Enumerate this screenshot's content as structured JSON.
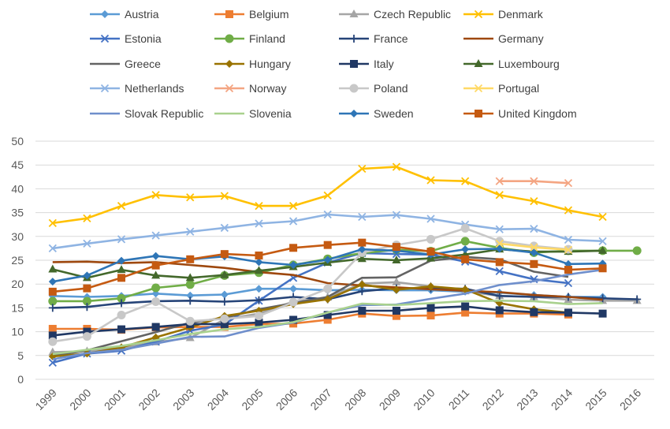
{
  "chart_data": {
    "type": "line",
    "title": "",
    "xlabel": "",
    "ylabel": "",
    "x": [
      "1999",
      "2000",
      "2001",
      "2002",
      "2003",
      "2004",
      "2005",
      "2006",
      "2007",
      "2008",
      "2009",
      "2010",
      "2011",
      "2012",
      "2013",
      "2014",
      "2015",
      "2016"
    ],
    "ylim": [
      0,
      50
    ],
    "yticks": [
      0,
      5,
      10,
      15,
      20,
      25,
      30,
      35,
      40,
      45,
      50
    ],
    "grid": true,
    "legend_position": "top",
    "series": [
      {
        "name": "Austria",
        "color": "#5B9BD5",
        "marker": "diamond",
        "values": [
          17.5,
          17.3,
          17.5,
          18.0,
          17.6,
          17.8,
          19.0,
          19.0,
          18.7,
          18.8,
          18.7,
          18.7,
          18.4,
          18.2,
          17.7,
          17.3,
          17.3,
          null
        ]
      },
      {
        "name": "Belgium",
        "color": "#ED7D31",
        "marker": "square",
        "values": [
          10.6,
          10.6,
          10.4,
          10.9,
          11.0,
          11.0,
          11.6,
          11.7,
          12.5,
          13.8,
          13.3,
          13.4,
          14.0,
          13.8,
          13.8,
          13.6,
          null,
          null
        ]
      },
      {
        "name": "Czech Republic",
        "color": "#A5A5A5",
        "marker": "triangle",
        "values": [
          5.7,
          5.9,
          6.6,
          7.8,
          8.7,
          12.6,
          13.8,
          16.3,
          17.2,
          20.1,
          20.4,
          19.5,
          18.5,
          17.5,
          17.3,
          16.7,
          16.5,
          16.5
        ]
      },
      {
        "name": "Denmark",
        "color": "#FFC000",
        "marker": "x",
        "values": [
          32.8,
          33.8,
          36.4,
          38.7,
          38.2,
          38.5,
          36.4,
          36.4,
          38.6,
          44.2,
          44.6,
          41.8,
          41.6,
          38.7,
          37.4,
          35.5,
          34.1,
          null
        ]
      },
      {
        "name": "Estonia",
        "color": "#4472C4",
        "marker": "x",
        "values": [
          3.5,
          5.4,
          6.0,
          7.9,
          10.2,
          11.5,
          16.5,
          21.3,
          24.5,
          26.5,
          26.3,
          26.2,
          24.7,
          22.7,
          21.0,
          20.2,
          null,
          null
        ]
      },
      {
        "name": "Finland",
        "color": "#70AD47",
        "marker": "circle",
        "values": [
          16.4,
          16.4,
          17.0,
          19.2,
          19.9,
          21.8,
          22.4,
          24.0,
          25.3,
          26.5,
          27.2,
          26.9,
          29.0,
          27.6,
          26.6,
          27.0,
          27.0,
          27.0
        ]
      },
      {
        "name": "France",
        "color": "#264478",
        "marker": "plus",
        "values": [
          15.0,
          15.2,
          16.0,
          16.4,
          16.5,
          16.3,
          16.6,
          17.3,
          16.8,
          18.5,
          19.1,
          19.1,
          19.0,
          17.5,
          17.3,
          17.3,
          17.0,
          16.8
        ]
      },
      {
        "name": "Germany",
        "color": "#9E480E",
        "marker": "none",
        "values": [
          24.6,
          24.7,
          24.4,
          24.6,
          24.0,
          23.4,
          22.5,
          21.9,
          20.2,
          19.7,
          19.3,
          18.9,
          18.6,
          18.3,
          17.7,
          17.3,
          16.7,
          null
        ]
      },
      {
        "name": "Greece",
        "color": "#636363",
        "marker": "none",
        "values": [
          4.9,
          6.1,
          8.0,
          9.9,
          11.9,
          12.9,
          14.7,
          16.0,
          17.3,
          21.3,
          21.4,
          24.9,
          25.7,
          25.2,
          22.6,
          21.5,
          null,
          null
        ]
      },
      {
        "name": "Hungary",
        "color": "#997300",
        "marker": "diamond",
        "values": [
          4.8,
          5.4,
          6.7,
          8.8,
          10.9,
          13.3,
          14.4,
          15.8,
          16.8,
          19.9,
          18.8,
          19.5,
          18.9,
          16.0,
          14.7,
          14.0,
          null,
          null
        ]
      },
      {
        "name": "Italy",
        "color": "#203864",
        "marker": "square",
        "values": [
          9.2,
          10.0,
          10.5,
          11.0,
          11.6,
          11.6,
          11.9,
          12.5,
          13.5,
          14.4,
          14.4,
          15.0,
          15.3,
          14.5,
          14.1,
          14.0,
          13.8,
          null
        ]
      },
      {
        "name": "Luxembourg",
        "color": "#43682B",
        "marker": "triangle",
        "values": [
          23.1,
          21.3,
          23.0,
          21.8,
          21.3,
          21.9,
          22.8,
          23.6,
          24.5,
          25.3,
          25.0,
          25.4,
          26.2,
          27.3,
          26.8,
          26.8,
          27.0,
          null
        ]
      },
      {
        "name": "Netherlands",
        "color": "#8FB4E3",
        "marker": "x",
        "values": [
          27.5,
          28.5,
          29.4,
          30.2,
          31.0,
          31.8,
          32.7,
          33.2,
          34.6,
          34.1,
          34.5,
          33.7,
          32.5,
          31.5,
          31.6,
          29.3,
          29.0,
          null
        ]
      },
      {
        "name": "Norway",
        "color": "#F4A582",
        "marker": "x",
        "values": [
          null,
          null,
          null,
          null,
          null,
          null,
          null,
          null,
          null,
          null,
          null,
          null,
          null,
          41.6,
          41.6,
          41.2,
          null,
          null
        ]
      },
      {
        "name": "Poland",
        "color": "#C8C8C8",
        "marker": "circle",
        "values": [
          7.9,
          9.0,
          13.5,
          16.3,
          12.2,
          12.7,
          13.3,
          16.2,
          19.0,
          26.6,
          28.2,
          29.4,
          31.7,
          29.0,
          28.0,
          27.3,
          null,
          null
        ]
      },
      {
        "name": "Portugal",
        "color": "#FFD966",
        "marker": "x",
        "values": [
          null,
          null,
          null,
          null,
          null,
          null,
          null,
          null,
          null,
          null,
          null,
          null,
          null,
          28.5,
          27.7,
          27.2,
          null,
          null
        ]
      },
      {
        "name": "Slovak Republic",
        "color": "#6F8FCC",
        "marker": "none",
        "values": [
          4.2,
          5.5,
          6.2,
          7.5,
          8.9,
          9.0,
          10.8,
          11.9,
          14.0,
          15.6,
          15.7,
          16.9,
          18.0,
          19.8,
          20.6,
          22.0,
          23.0,
          null
        ]
      },
      {
        "name": "Slovenia",
        "color": "#A9D18E",
        "marker": "none",
        "values": [
          5.3,
          6.2,
          7.0,
          8.2,
          9.5,
          10.5,
          11.0,
          12.0,
          14.0,
          15.9,
          15.6,
          16.0,
          16.4,
          16.5,
          16.4,
          15.8,
          16.0,
          null
        ]
      },
      {
        "name": "Sweden",
        "color": "#2E75B6",
        "marker": "diamond",
        "values": [
          20.5,
          21.8,
          24.9,
          25.9,
          25.2,
          25.8,
          24.6,
          24.0,
          25.1,
          27.3,
          27.0,
          26.2,
          27.3,
          27.4,
          26.6,
          24.2,
          24.3,
          null
        ]
      },
      {
        "name": "United Kingdom",
        "color": "#C55A11",
        "marker": "square",
        "values": [
          18.4,
          19.1,
          21.3,
          23.9,
          25.2,
          26.3,
          26.0,
          27.6,
          28.2,
          28.7,
          27.8,
          26.8,
          25.2,
          24.6,
          24.2,
          23.0,
          23.3,
          null
        ]
      }
    ]
  }
}
